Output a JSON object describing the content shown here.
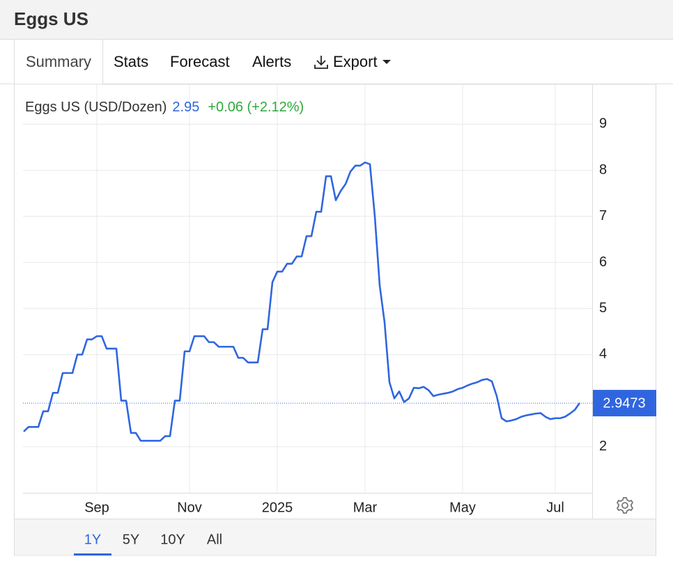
{
  "header": {
    "title": "Eggs US"
  },
  "tabs": [
    "Summary",
    "Stats",
    "Forecast",
    "Alerts",
    "Export"
  ],
  "chart_data": {
    "type": "line",
    "last_value": 2.95,
    "change": "+0.06 (+2.12%)",
    "last_price": 2.9473,
    "categories": [
      null,
      null,
      null,
      null,
      null,
      null,
      null,
      null,
      null,
      null,
      null,
      null,
      null,
      null,
      null,
      "Sep",
      null,
      null,
      null,
      null,
      null,
      null,
      null,
      null,
      null,
      null,
      null,
      null,
      null,
      null,
      null,
      null,
      null,
      null,
      "Nov",
      null,
      null,
      null,
      null,
      null,
      null,
      null,
      null,
      null,
      null,
      null,
      null,
      null,
      null,
      null,
      null,
      null,
      "2025",
      null,
      null,
      null,
      null,
      null,
      null,
      null,
      null,
      null,
      null,
      null,
      null,
      null,
      null,
      null,
      null,
      null,
      "Mar",
      null,
      null,
      null,
      null,
      null,
      null,
      null,
      null,
      null,
      null,
      null,
      null,
      null,
      null,
      null,
      null,
      null,
      null,
      null,
      "May",
      null,
      null,
      null,
      null,
      null,
      null,
      null,
      null,
      null,
      null,
      null,
      null,
      null,
      null,
      null,
      null,
      null,
      null,
      "Jul",
      null,
      null,
      null,
      null,
      null
    ],
    "series": [
      {
        "name": "Eggs US (USD/Dozen)",
        "color": "#2f66e0",
        "values": [
          2.33,
          2.43,
          2.43,
          2.43,
          2.77,
          2.77,
          3.17,
          3.17,
          3.6,
          3.6,
          3.6,
          4.0,
          4.0,
          4.33,
          4.33,
          4.4,
          4.4,
          4.13,
          4.13,
          4.13,
          3.0,
          3.0,
          2.3,
          2.3,
          2.13,
          2.13,
          2.13,
          2.13,
          2.13,
          2.23,
          2.23,
          3.0,
          3.0,
          4.07,
          4.07,
          4.4,
          4.4,
          4.4,
          4.27,
          4.27,
          4.17,
          4.17,
          4.17,
          4.17,
          3.93,
          3.93,
          3.83,
          3.83,
          3.83,
          4.55,
          4.55,
          5.57,
          5.8,
          5.8,
          5.97,
          5.97,
          6.13,
          6.13,
          6.57,
          6.57,
          7.1,
          7.1,
          7.87,
          7.87,
          7.35,
          7.55,
          7.7,
          7.97,
          8.1,
          8.1,
          8.17,
          8.13,
          7.0,
          5.5,
          4.7,
          3.4,
          3.05,
          3.2,
          2.97,
          3.05,
          3.28,
          3.27,
          3.3,
          3.23,
          3.1,
          3.13,
          3.15,
          3.17,
          3.2,
          3.25,
          3.28,
          3.33,
          3.37,
          3.4,
          3.45,
          3.47,
          3.42,
          3.1,
          2.62,
          2.55,
          2.57,
          2.6,
          2.65,
          2.68,
          2.7,
          2.72,
          2.73,
          2.65,
          2.6,
          2.62,
          2.62,
          2.65,
          2.72,
          2.8,
          2.95
        ]
      }
    ],
    "ylim": [
      1,
      9.8
    ],
    "yticks": [
      2,
      4,
      5,
      6,
      7,
      8,
      9
    ],
    "grid": true
  },
  "ranges": [
    "1Y",
    "5Y",
    "10Y",
    "All"
  ],
  "active_range": 0
}
